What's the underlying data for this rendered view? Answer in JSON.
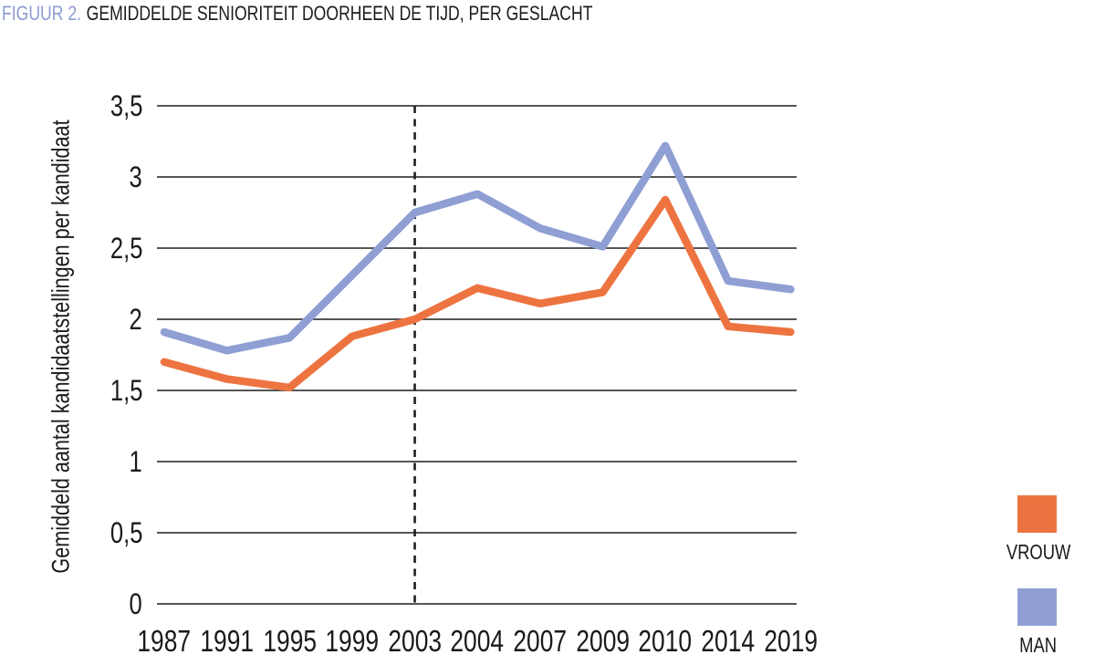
{
  "title": {
    "figure_label": "FIGUUR 2.",
    "text": "GEMIDDELDE SENIORITEIT DOORHEEN DE TIJD, PER GESLACHT"
  },
  "colors": {
    "vrouw": "#ED7440",
    "man": "#8F9FD3",
    "figure_label_accent": "#8C9CD1",
    "grid": "#3d3d3d",
    "dashed_line": "#1f1f1f",
    "text": "#1A1A1A"
  },
  "chart_data": {
    "type": "line",
    "title": "FIGUUR 2. GEMIDDELDE SENIORITEIT DOORHEEN DE TIJD, PER GESLACHT",
    "xlabel": "",
    "ylabel": "Gemiddeld aantal kandidaatstellingen per kandidaat",
    "categories": [
      "1987",
      "1991",
      "1995",
      "1999",
      "2003",
      "2004",
      "2007",
      "2009",
      "2010",
      "2014",
      "2019"
    ],
    "series": [
      {
        "name": "MAN",
        "color": "#8F9FD3",
        "values": [
          1.91,
          1.78,
          1.87,
          2.31,
          2.75,
          2.88,
          2.64,
          2.51,
          3.22,
          2.27,
          2.21
        ]
      },
      {
        "name": "VROUW",
        "color": "#ED7440",
        "values": [
          1.7,
          1.58,
          1.52,
          1.88,
          2.0,
          2.22,
          2.11,
          2.19,
          2.84,
          1.95,
          1.91
        ]
      }
    ],
    "ylim": [
      0,
      3.5
    ],
    "yticks": [
      {
        "value": 0,
        "label": "0"
      },
      {
        "value": 0.5,
        "label": "0,5"
      },
      {
        "value": 1,
        "label": "1"
      },
      {
        "value": 1.5,
        "label": "1,5"
      },
      {
        "value": 2,
        "label": "2"
      },
      {
        "value": 2.5,
        "label": "2,5"
      },
      {
        "value": 3,
        "label": "3"
      },
      {
        "value": 3.5,
        "label": "3,5"
      }
    ],
    "grid": true,
    "annotation": {
      "type": "vline",
      "at_category": "2003",
      "style": "dashed"
    },
    "legend_position": "right-bottom"
  },
  "legend": {
    "items": [
      {
        "label": "VROUW",
        "color": "#ED7440"
      },
      {
        "label": "MAN",
        "color": "#8F9FD3"
      }
    ]
  }
}
